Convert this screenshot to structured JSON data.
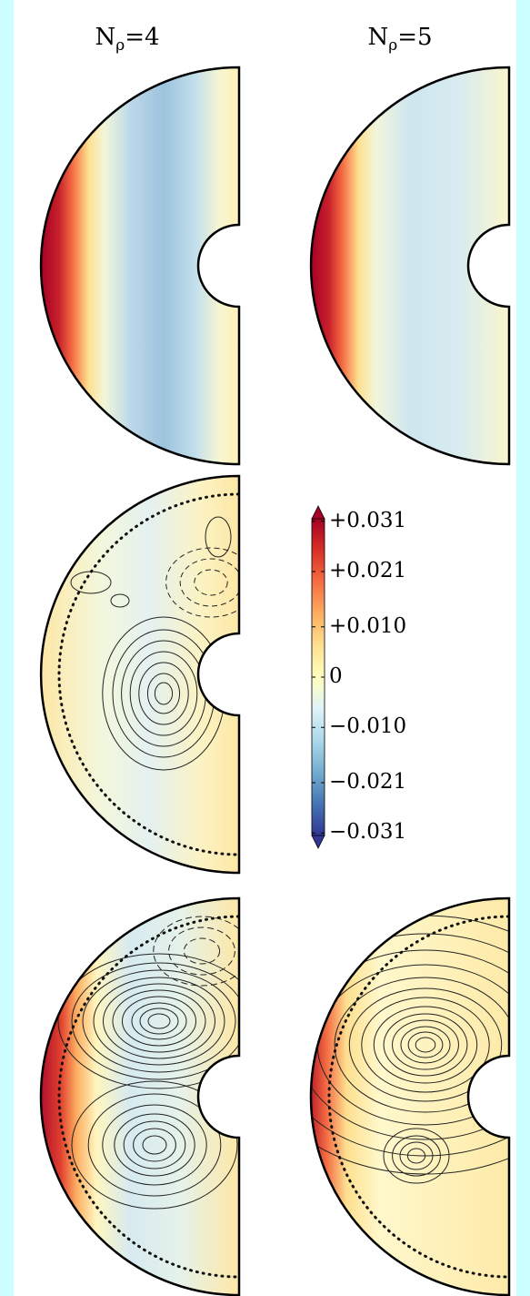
{
  "chart_data": {
    "type": "colorbar",
    "titles": [
      {
        "base": "N",
        "sub": "ρ",
        "rest": "=4"
      },
      {
        "base": "N",
        "sub": "ρ",
        "rest": "=5"
      }
    ],
    "colors": [
      "#313695",
      "#4575b4",
      "#74add1",
      "#abd9e9",
      "#e0f3f8",
      "#ffffbf",
      "#fee090",
      "#fdae61",
      "#f46d43",
      "#d73027",
      "#a50026"
    ],
    "ylim": [
      -0.0315,
      0.0315
    ],
    "yticks": [
      {
        "value": 0.031,
        "label": "+0.031"
      },
      {
        "value": 0.021,
        "label": "+0.021"
      },
      {
        "value": 0.01,
        "label": "+0.010"
      },
      0,
      {
        "value": -0.01,
        "label": "−0.010"
      },
      {
        "value": -0.021,
        "label": "−0.021"
      },
      {
        "value": -0.031,
        "label": "−0.031"
      }
    ]
  }
}
